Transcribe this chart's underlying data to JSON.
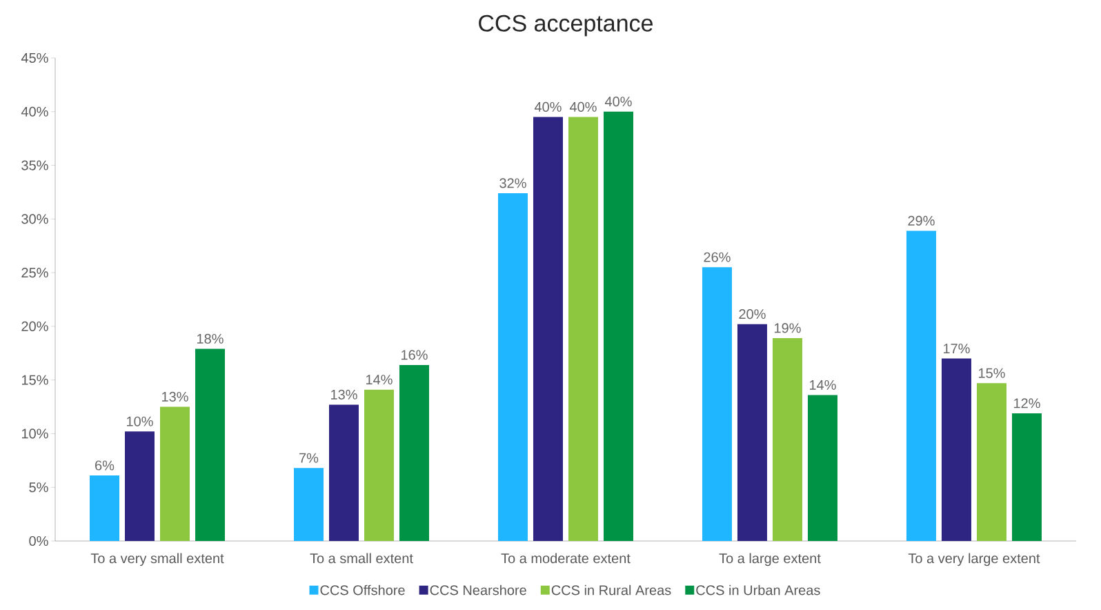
{
  "chart_data": {
    "type": "bar",
    "title": "CCS acceptance",
    "categories": [
      "To a very small extent",
      "To a small extent",
      "To a moderate extent",
      "To a large extent",
      "To a very large extent"
    ],
    "series": [
      {
        "name": "CCS Offshore",
        "color": "#1fb6ff",
        "values": [
          6.1,
          6.8,
          32.4,
          25.5,
          28.9
        ],
        "value_labels": [
          "6%",
          "7%",
          "32%",
          "26%",
          "29%"
        ]
      },
      {
        "name": "CCS Nearshore",
        "color": "#2e2482",
        "values": [
          10.2,
          12.7,
          39.5,
          20.2,
          17.0
        ],
        "value_labels": [
          "10%",
          "13%",
          "40%",
          "20%",
          "17%"
        ]
      },
      {
        "name": "CCS in Rural Areas",
        "color": "#8dc63f",
        "values": [
          12.5,
          14.1,
          39.5,
          18.9,
          14.7
        ],
        "value_labels": [
          "13%",
          "14%",
          "40%",
          "19%",
          "15%"
        ]
      },
      {
        "name": "CCS in Urban Areas",
        "color": "#009245",
        "values": [
          17.9,
          16.4,
          40.0,
          13.6,
          11.9
        ],
        "value_labels": [
          "18%",
          "16%",
          "40%",
          "14%",
          "12%"
        ]
      }
    ],
    "ylim": [
      0,
      45
    ],
    "yticks": [
      {
        "value": 0,
        "label": "0%"
      },
      {
        "value": 5,
        "label": "5%"
      },
      {
        "value": 10,
        "label": "10%"
      },
      {
        "value": 15,
        "label": "15%"
      },
      {
        "value": 20,
        "label": "20%"
      },
      {
        "value": 25,
        "label": "25%"
      },
      {
        "value": 30,
        "label": "30%"
      },
      {
        "value": 35,
        "label": "35%"
      },
      {
        "value": 40,
        "label": "40%"
      },
      {
        "value": 45,
        "label": "45%"
      }
    ],
    "grid": false,
    "legend": "bottom"
  }
}
